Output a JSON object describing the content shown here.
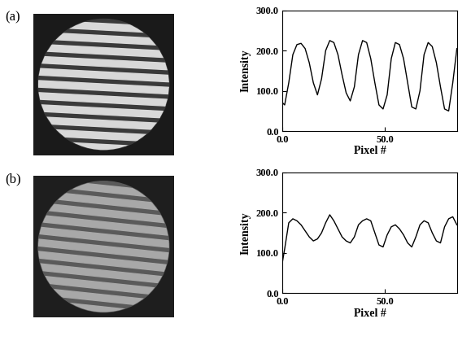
{
  "chart_data": [
    {
      "type": "line",
      "title": "(a)",
      "x_label": "Pixel #",
      "y_label": "Intensity",
      "x": [
        0,
        1,
        3,
        5,
        7,
        9,
        11,
        13,
        15,
        17,
        19,
        21,
        23,
        25,
        27,
        29,
        31,
        33,
        35,
        37,
        39,
        41,
        43,
        45,
        47,
        49,
        51,
        53,
        55,
        57,
        59,
        61,
        63,
        65,
        67,
        69,
        71,
        73,
        75,
        77,
        79,
        81,
        83,
        85
      ],
      "values": [
        70,
        65,
        120,
        190,
        215,
        218,
        205,
        170,
        120,
        90,
        130,
        200,
        225,
        220,
        190,
        140,
        95,
        75,
        110,
        190,
        225,
        220,
        180,
        120,
        65,
        55,
        90,
        180,
        220,
        215,
        180,
        120,
        60,
        55,
        100,
        190,
        220,
        210,
        170,
        110,
        55,
        50,
        120,
        205
      ],
      "color": "#000000",
      "xlim": [
        0,
        85
      ],
      "xticks": [
        {
          "value": 0,
          "label": "0.0"
        },
        {
          "value": 50,
          "label": "50.0"
        }
      ],
      "ylim": [
        0,
        300
      ],
      "yticks": [
        {
          "value": 0,
          "label": "0.0"
        },
        {
          "value": 100,
          "label": "100.0"
        },
        {
          "value": 200,
          "label": "200.0"
        },
        {
          "value": 300,
          "label": "300.0"
        }
      ]
    },
    {
      "type": "line",
      "title": "(b)",
      "x_label": "Pixel #",
      "y_label": "Intensity",
      "x": [
        0,
        1,
        3,
        5,
        7,
        9,
        11,
        13,
        15,
        17,
        19,
        21,
        23,
        25,
        27,
        29,
        31,
        33,
        35,
        37,
        39,
        41,
        43,
        45,
        47,
        49,
        51,
        53,
        55,
        57,
        59,
        61,
        63,
        65,
        67,
        69,
        71,
        73,
        75,
        77,
        79,
        81,
        83,
        85
      ],
      "values": [
        80,
        110,
        175,
        185,
        180,
        170,
        155,
        140,
        130,
        135,
        150,
        175,
        195,
        180,
        160,
        140,
        130,
        125,
        140,
        170,
        180,
        185,
        180,
        150,
        120,
        115,
        145,
        165,
        170,
        160,
        145,
        125,
        115,
        140,
        170,
        180,
        175,
        150,
        130,
        125,
        165,
        185,
        190,
        170
      ],
      "color": "#000000",
      "xlim": [
        0,
        85
      ],
      "xticks": [
        {
          "value": 0,
          "label": "0.0"
        },
        {
          "value": 50,
          "label": "50.0"
        }
      ],
      "ylim": [
        0,
        300
      ],
      "yticks": [
        {
          "value": 0,
          "label": "0.0"
        },
        {
          "value": 100,
          "label": "100.0"
        },
        {
          "value": 200,
          "label": "200.0"
        },
        {
          "value": 300,
          "label": "300.0"
        }
      ]
    }
  ]
}
